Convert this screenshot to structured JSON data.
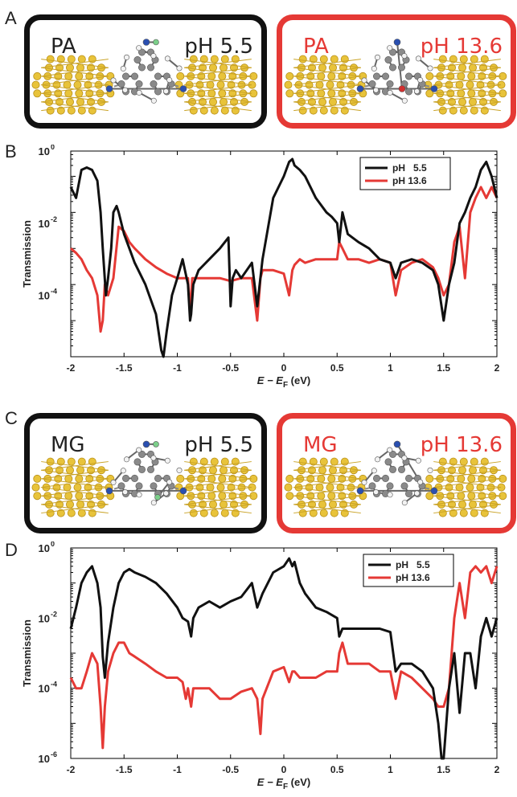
{
  "panels": [
    {
      "letter": "A",
      "left_name": "PA",
      "right_name": "PA",
      "left_ph": "pH 5.5",
      "right_ph": "pH 13.6"
    },
    {
      "letter": "C",
      "left_name": "MG",
      "right_name": "MG",
      "left_ph": "pH 5.5",
      "right_ph": "pH 13.6"
    }
  ],
  "plot_letters": {
    "b": "B",
    "d": "D"
  },
  "colors": {
    "black": "#111111",
    "red": "#e53935",
    "gold": "#e8c33a",
    "grey": "#8a8a8a",
    "nitrogen": "#2a4fb0",
    "fluorine": "#7ccf8a",
    "oxygen": "#d32f2f"
  },
  "chart_data": [
    {
      "type": "line",
      "xlabel": "E − E_F (eV)",
      "ylabel": "Transmission",
      "xlim": [
        -2,
        2
      ],
      "ylim_log10": [
        -6,
        0
      ],
      "log_y": true,
      "x_ticks": [
        "-2",
        "-1.5",
        "-1",
        "-0.5",
        "0",
        "0.5",
        "1",
        "1.5",
        "2"
      ],
      "y_ticks": [
        {
          "base": "10",
          "exp": "0"
        },
        {
          "base": "10",
          "exp": "-2"
        },
        {
          "base": "10",
          "exp": "-4"
        }
      ],
      "legend_position": "top-right",
      "series": [
        {
          "name": "pH   5.5",
          "color": "#111111",
          "x": [
            -2.0,
            -1.95,
            -1.9,
            -1.85,
            -1.8,
            -1.75,
            -1.72,
            -1.7,
            -1.67,
            -1.65,
            -1.62,
            -1.6,
            -1.57,
            -1.55,
            -1.5,
            -1.45,
            -1.4,
            -1.3,
            -1.2,
            -1.15,
            -1.13,
            -1.1,
            -1.05,
            -1.0,
            -0.95,
            -0.9,
            -0.88,
            -0.87,
            -0.85,
            -0.8,
            -0.7,
            -0.6,
            -0.52,
            -0.5,
            -0.48,
            -0.45,
            -0.4,
            -0.3,
            -0.25,
            -0.2,
            -0.1,
            0.0,
            0.05,
            0.08,
            0.1,
            0.15,
            0.2,
            0.3,
            0.4,
            0.45,
            0.5,
            0.52,
            0.55,
            0.6,
            0.7,
            0.8,
            0.9,
            1.0,
            1.05,
            1.1,
            1.2,
            1.3,
            1.4,
            1.45,
            1.5,
            1.55,
            1.6,
            1.65,
            1.7,
            1.75,
            1.8,
            1.85,
            1.9,
            1.95,
            2.0
          ],
          "y": [
            0.1,
            0.05,
            0.3,
            0.35,
            0.3,
            0.15,
            0.02,
            0.002,
            0.0001,
            0.0003,
            0.002,
            0.02,
            0.03,
            0.02,
            0.005,
            0.002,
            0.0008,
            0.0002,
            3e-05,
            3e-06,
            1.5e-06,
            1e-05,
            0.0001,
            0.0003,
            0.001,
            0.0002,
            2e-05,
            3e-05,
            0.0002,
            0.0005,
            0.001,
            0.002,
            0.004,
            5e-05,
            0.0003,
            0.0005,
            0.0003,
            0.0008,
            5e-05,
            0.001,
            0.05,
            0.2,
            0.5,
            0.6,
            0.4,
            0.3,
            0.2,
            0.05,
            0.02,
            0.015,
            0.01,
            0.003,
            0.02,
            0.005,
            0.003,
            0.002,
            0.001,
            0.0008,
            0.0003,
            0.0008,
            0.001,
            0.0008,
            0.0005,
            0.0002,
            2e-05,
            0.0002,
            0.0008,
            0.01,
            0.02,
            0.05,
            0.1,
            0.3,
            0.5,
            0.2,
            0.05
          ]
        },
        {
          "name": "pH 13.6",
          "color": "#e53935",
          "x": [
            -2.0,
            -1.95,
            -1.9,
            -1.85,
            -1.8,
            -1.75,
            -1.72,
            -1.7,
            -1.68,
            -1.65,
            -1.6,
            -1.55,
            -1.5,
            -1.45,
            -1.4,
            -1.3,
            -1.2,
            -1.1,
            -1.0,
            -0.9,
            -0.88,
            -0.86,
            -0.85,
            -0.8,
            -0.7,
            -0.6,
            -0.5,
            -0.4,
            -0.3,
            -0.25,
            -0.22,
            -0.2,
            -0.15,
            -0.1,
            0.0,
            0.05,
            0.08,
            0.1,
            0.15,
            0.2,
            0.3,
            0.4,
            0.5,
            0.52,
            0.55,
            0.6,
            0.7,
            0.8,
            0.9,
            1.0,
            1.05,
            1.1,
            1.2,
            1.3,
            1.4,
            1.45,
            1.5,
            1.55,
            1.6,
            1.65,
            1.7,
            1.75,
            1.8,
            1.85,
            1.9,
            1.95,
            2.0
          ],
          "y": [
            0.002,
            0.0015,
            0.001,
            0.0005,
            0.0003,
            0.0001,
            1e-05,
            2e-05,
            0.0002,
            0.0001,
            0.0003,
            0.008,
            0.006,
            0.003,
            0.002,
            0.001,
            0.0006,
            0.0004,
            0.0003,
            0.0003,
            3e-05,
            0.0003,
            0.0003,
            0.0003,
            0.0003,
            0.0003,
            0.00025,
            0.0003,
            0.0003,
            2e-05,
            0.0003,
            0.0005,
            0.0005,
            0.0005,
            0.0004,
            0.0001,
            0.0005,
            0.0007,
            0.001,
            0.0008,
            0.001,
            0.001,
            0.001,
            0.003,
            0.002,
            0.001,
            0.001,
            0.0008,
            0.001,
            0.0008,
            0.0001,
            0.0005,
            0.0008,
            0.001,
            0.0006,
            0.0003,
            0.0001,
            0.0002,
            0.003,
            0.008,
            0.0003,
            0.02,
            0.05,
            0.1,
            0.05,
            0.1,
            0.05
          ]
        }
      ]
    },
    {
      "type": "line",
      "xlabel": "E − E_F (eV)",
      "ylabel": "Transmission",
      "xlim": [
        -2,
        2
      ],
      "ylim_log10": [
        -6,
        0
      ],
      "log_y": true,
      "x_ticks": [
        "-2",
        "-1.5",
        "-1",
        "-0.5",
        "0",
        "0.5",
        "1",
        "1.5",
        "2"
      ],
      "y_ticks": [
        {
          "base": "10",
          "exp": "0"
        },
        {
          "base": "10",
          "exp": "-2"
        },
        {
          "base": "10",
          "exp": "-4"
        },
        {
          "base": "10",
          "exp": "-6"
        }
      ],
      "legend_position": "top-right",
      "series": [
        {
          "name": "pH   5.5",
          "color": "#111111",
          "x": [
            -2.0,
            -1.95,
            -1.9,
            -1.85,
            -1.8,
            -1.75,
            -1.72,
            -1.7,
            -1.68,
            -1.65,
            -1.6,
            -1.55,
            -1.5,
            -1.45,
            -1.4,
            -1.3,
            -1.2,
            -1.1,
            -1.0,
            -0.95,
            -0.9,
            -0.87,
            -0.85,
            -0.8,
            -0.7,
            -0.6,
            -0.5,
            -0.4,
            -0.3,
            -0.25,
            -0.2,
            -0.1,
            0.0,
            0.05,
            0.08,
            0.1,
            0.15,
            0.2,
            0.3,
            0.4,
            0.5,
            0.52,
            0.55,
            0.6,
            0.7,
            0.8,
            0.9,
            1.0,
            1.05,
            1.1,
            1.2,
            1.3,
            1.4,
            1.45,
            1.48,
            1.5,
            1.55,
            1.6,
            1.65,
            1.7,
            1.75,
            1.8,
            1.85,
            1.9,
            1.95,
            2.0
          ],
          "y": [
            0.005,
            0.02,
            0.1,
            0.2,
            0.3,
            0.1,
            0.02,
            0.0008,
            0.0002,
            0.002,
            0.02,
            0.1,
            0.2,
            0.25,
            0.2,
            0.15,
            0.1,
            0.05,
            0.02,
            0.01,
            0.008,
            0.003,
            0.01,
            0.02,
            0.03,
            0.02,
            0.03,
            0.04,
            0.1,
            0.02,
            0.05,
            0.2,
            0.3,
            0.5,
            0.3,
            0.4,
            0.1,
            0.05,
            0.02,
            0.015,
            0.01,
            0.003,
            0.005,
            0.005,
            0.005,
            0.005,
            0.005,
            0.004,
            0.0003,
            0.0005,
            0.0005,
            0.0003,
            0.0001,
            1e-05,
            1e-06,
            1e-06,
            0.0001,
            0.001,
            2e-05,
            0.001,
            0.001,
            0.0001,
            0.003,
            0.01,
            0.003,
            0.01
          ]
        },
        {
          "name": "pH 13.6",
          "color": "#e53935",
          "x": [
            -2.0,
            -1.95,
            -1.9,
            -1.85,
            -1.8,
            -1.75,
            -1.72,
            -1.7,
            -1.68,
            -1.65,
            -1.6,
            -1.55,
            -1.5,
            -1.45,
            -1.4,
            -1.3,
            -1.2,
            -1.1,
            -1.0,
            -0.95,
            -0.92,
            -0.9,
            -0.87,
            -0.85,
            -0.8,
            -0.7,
            -0.6,
            -0.5,
            -0.4,
            -0.3,
            -0.25,
            -0.22,
            -0.2,
            -0.1,
            0.0,
            0.05,
            0.08,
            0.1,
            0.15,
            0.2,
            0.3,
            0.4,
            0.5,
            0.52,
            0.55,
            0.6,
            0.7,
            0.8,
            0.9,
            1.0,
            1.05,
            1.1,
            1.2,
            1.3,
            1.4,
            1.45,
            1.5,
            1.55,
            1.6,
            1.65,
            1.7,
            1.75,
            1.8,
            1.85,
            1.9,
            1.95,
            2.0
          ],
          "y": [
            0.0002,
            0.0001,
            0.0001,
            0.0003,
            0.001,
            0.0005,
            3e-05,
            2e-06,
            3e-05,
            0.0003,
            0.001,
            0.002,
            0.002,
            0.001,
            0.0008,
            0.0005,
            0.0003,
            0.0002,
            0.0002,
            0.00015,
            5e-05,
            0.0001,
            3e-05,
            0.0001,
            0.0001,
            0.0001,
            5e-05,
            5e-05,
            8e-05,
            0.0001,
            5e-05,
            5e-06,
            5e-05,
            0.0003,
            0.0004,
            0.00015,
            0.0003,
            0.0003,
            0.0002,
            0.0002,
            0.0002,
            0.0003,
            0.0003,
            0.001,
            0.002,
            0.0005,
            0.0005,
            0.0005,
            0.0003,
            0.0003,
            5e-05,
            0.0003,
            0.0002,
            0.0001,
            5e-05,
            3e-05,
            3e-05,
            0.0001,
            0.01,
            0.1,
            0.01,
            0.2,
            0.3,
            0.2,
            0.3,
            0.1,
            0.3
          ]
        }
      ]
    }
  ]
}
